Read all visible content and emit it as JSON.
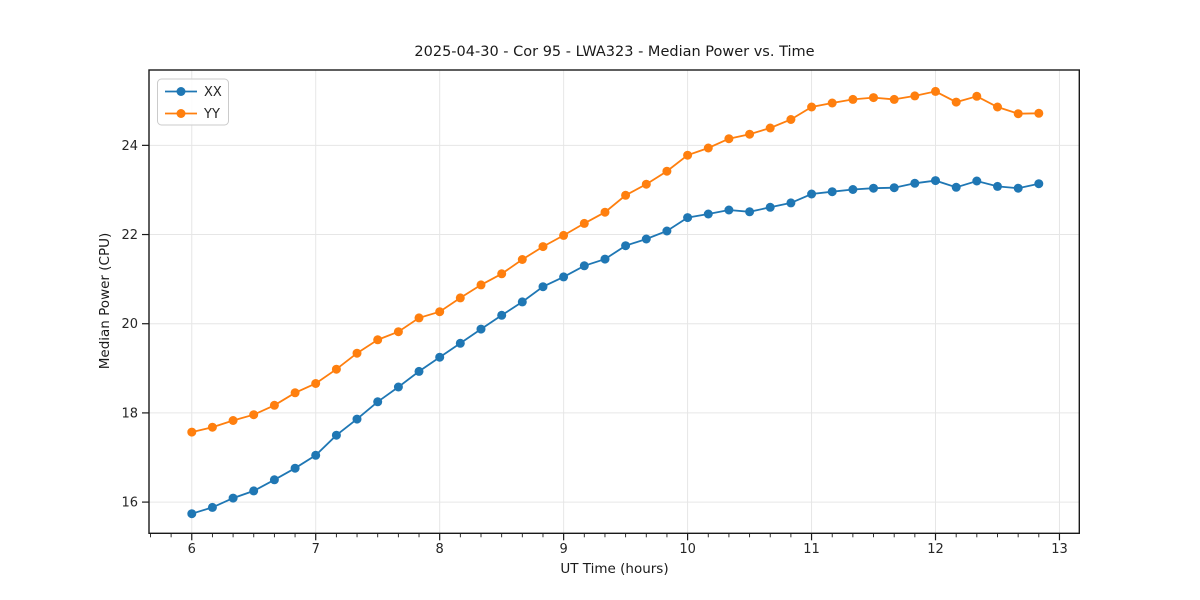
{
  "figure": {
    "background": "#ffffff"
  },
  "chart_data": {
    "type": "line",
    "title": "2025-04-30 - Cor 95 - LWA323 - Median Power vs. Time",
    "xlabel": "UT Time (hours)",
    "ylabel": "Median Power (CPU)",
    "x": [
      6.0,
      6.1667,
      6.3333,
      6.5,
      6.6667,
      6.8333,
      7.0,
      7.1667,
      7.3333,
      7.5,
      7.6667,
      7.8333,
      8.0,
      8.1667,
      8.3333,
      8.5,
      8.6667,
      8.8333,
      9.0,
      9.1667,
      9.3333,
      9.5,
      9.6667,
      9.8333,
      10.0,
      10.1667,
      10.3333,
      10.5,
      10.6667,
      10.8333,
      11.0,
      11.1667,
      11.3333,
      11.5,
      11.6667,
      11.8333,
      12.0,
      12.1667,
      12.3333,
      12.5,
      12.6667,
      12.8333
    ],
    "series": [
      {
        "name": "XX",
        "color": "#1f77b4",
        "values": [
          15.74,
          15.88,
          16.09,
          16.25,
          16.5,
          16.76,
          17.05,
          17.5,
          17.86,
          18.25,
          18.58,
          18.93,
          19.25,
          19.56,
          19.88,
          20.19,
          20.49,
          20.83,
          21.05,
          21.3,
          21.45,
          21.75,
          21.9,
          22.08,
          22.38,
          22.46,
          22.55,
          22.51,
          22.61,
          22.71,
          22.91,
          22.96,
          23.01,
          23.04,
          23.05,
          23.15,
          23.21,
          23.06,
          23.2,
          23.08,
          23.04,
          23.14
        ]
      },
      {
        "name": "YY",
        "color": "#ff7f0e",
        "values": [
          17.57,
          17.68,
          17.83,
          17.96,
          18.17,
          18.45,
          18.66,
          18.98,
          19.34,
          19.64,
          19.82,
          20.13,
          20.27,
          20.58,
          20.87,
          21.12,
          21.44,
          21.73,
          21.98,
          22.25,
          22.5,
          22.88,
          23.13,
          23.42,
          23.78,
          23.94,
          24.15,
          24.25,
          24.39,
          24.58,
          24.86,
          24.95,
          25.03,
          25.07,
          25.03,
          25.11,
          25.21,
          24.97,
          25.1,
          24.86,
          24.71,
          24.72
        ]
      }
    ],
    "xlim": [
      5.655,
      13.16
    ],
    "ylim": [
      15.3,
      25.69
    ],
    "x_major_ticks": [
      6,
      7,
      8,
      9,
      10,
      11,
      12,
      13
    ],
    "x_minor_tick_step": 0.166667,
    "y_major_ticks": [
      16,
      18,
      20,
      22,
      24
    ],
    "grid": "major",
    "legend": {
      "position": "upper-left",
      "entries": [
        "XX",
        "YY"
      ]
    },
    "marker": "circle",
    "colors": {
      "grid": "#e6e6e6",
      "spine": "#1a1a1a",
      "tick": "#1a1a1a",
      "text": "#262626"
    }
  }
}
